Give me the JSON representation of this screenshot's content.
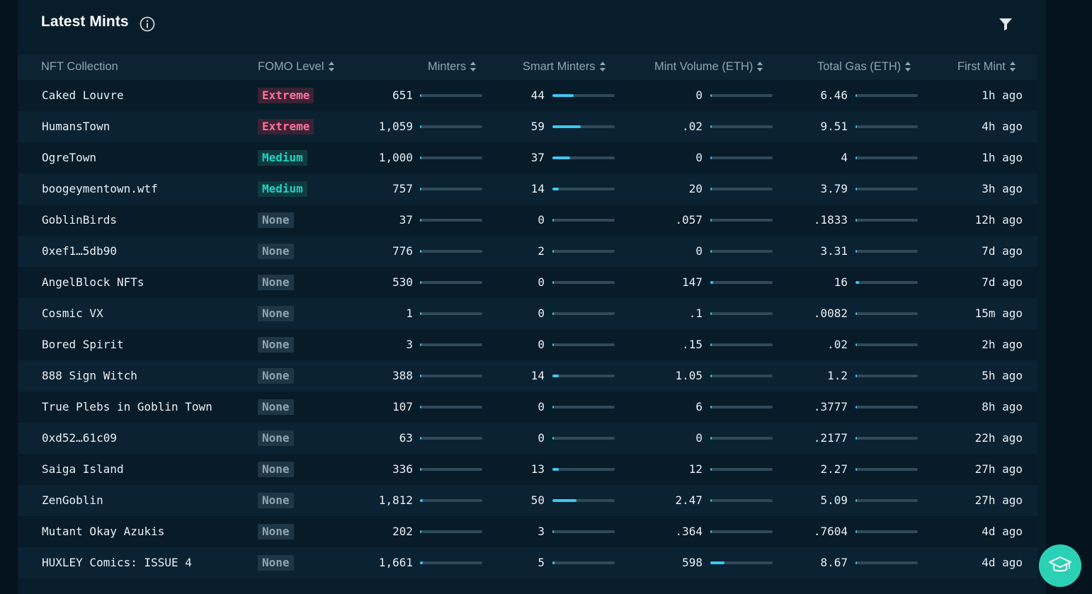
{
  "header": {
    "title": "Latest Mints"
  },
  "columns": {
    "collection": "NFT Collection",
    "fomo": "FOMO Level",
    "minters": "Minters",
    "smart": "Smart Minters",
    "volume": "Mint Volume (ETH)",
    "gas": "Total Gas (ETH)",
    "first": "First Mint"
  },
  "colors": {
    "extreme_text": "#ff6fa0",
    "extreme_bg": "#3a2333",
    "medium_text": "#22d3c3",
    "medium_bg": "#0f3a3e",
    "none_text": "#8ea5b3",
    "none_bg": "#1f3646"
  },
  "rows": [
    {
      "name": "Caked Louvre",
      "fomo": "Extreme",
      "minters": "651",
      "minters_frac": 0.01,
      "smart": "44",
      "smart_frac": 0.34,
      "volume": "0",
      "volume_frac": 0,
      "gas": "6.46",
      "gas_frac": 0.02,
      "first": "1h ago"
    },
    {
      "name": "HumansTown",
      "fomo": "Extreme",
      "minters": "1,059",
      "minters_frac": 0.02,
      "smart": "59",
      "smart_frac": 0.46,
      "volume": ".02",
      "volume_frac": 0,
      "gas": "9.51",
      "gas_frac": 0.02,
      "first": "4h ago"
    },
    {
      "name": "OgreTown",
      "fomo": "Medium",
      "minters": "1,000",
      "minters_frac": 0.02,
      "smart": "37",
      "smart_frac": 0.28,
      "volume": "0",
      "volume_frac": 0,
      "gas": "4",
      "gas_frac": 0.01,
      "first": "1h ago"
    },
    {
      "name": "boogeymentown.wtf",
      "fomo": "Medium",
      "minters": "757",
      "minters_frac": 0.01,
      "smart": "14",
      "smart_frac": 0.1,
      "volume": "20",
      "volume_frac": 0.01,
      "gas": "3.79",
      "gas_frac": 0.01,
      "first": "3h ago"
    },
    {
      "name": "GoblinBirds",
      "fomo": "None",
      "minters": "37",
      "minters_frac": 0.01,
      "smart": "0",
      "smart_frac": 0,
      "volume": ".057",
      "volume_frac": 0,
      "gas": ".1833",
      "gas_frac": 0,
      "first": "12h ago"
    },
    {
      "name": "0xef1…5db90",
      "fomo": "None",
      "minters": "776",
      "minters_frac": 0.01,
      "smart": "2",
      "smart_frac": 0.01,
      "volume": "0",
      "volume_frac": 0,
      "gas": "3.31",
      "gas_frac": 0.01,
      "first": "7d ago"
    },
    {
      "name": "AngelBlock NFTs",
      "fomo": "None",
      "minters": "530",
      "minters_frac": 0.01,
      "smart": "0",
      "smart_frac": 0,
      "volume": "147",
      "volume_frac": 0.05,
      "gas": "16",
      "gas_frac": 0.06,
      "first": "7d ago"
    },
    {
      "name": "Cosmic VX",
      "fomo": "None",
      "minters": "1",
      "minters_frac": 0,
      "smart": "0",
      "smart_frac": 0,
      "volume": ".1",
      "volume_frac": 0,
      "gas": ".0082",
      "gas_frac": 0,
      "first": "15m ago"
    },
    {
      "name": "Bored Spirit",
      "fomo": "None",
      "minters": "3",
      "minters_frac": 0,
      "smart": "0",
      "smart_frac": 0,
      "volume": ".15",
      "volume_frac": 0,
      "gas": ".02",
      "gas_frac": 0,
      "first": "2h ago"
    },
    {
      "name": "888 Sign Witch",
      "fomo": "None",
      "minters": "388",
      "minters_frac": 0.01,
      "smart": "14",
      "smart_frac": 0.1,
      "volume": "1.05",
      "volume_frac": 0,
      "gas": "1.2",
      "gas_frac": 0.01,
      "first": "5h ago"
    },
    {
      "name": "True Plebs in Goblin Town",
      "fomo": "None",
      "minters": "107",
      "minters_frac": 0.01,
      "smart": "0",
      "smart_frac": 0,
      "volume": "6",
      "volume_frac": 0,
      "gas": ".3777",
      "gas_frac": 0,
      "first": "8h ago"
    },
    {
      "name": "0xd52…61c09",
      "fomo": "None",
      "minters": "63",
      "minters_frac": 0.01,
      "smart": "0",
      "smart_frac": 0,
      "volume": "0",
      "volume_frac": 0,
      "gas": ".2177",
      "gas_frac": 0,
      "first": "22h ago"
    },
    {
      "name": "Saiga Island",
      "fomo": "None",
      "minters": "336",
      "minters_frac": 0.01,
      "smart": "13",
      "smart_frac": 0.1,
      "volume": "12",
      "volume_frac": 0,
      "gas": "2.27",
      "gas_frac": 0.01,
      "first": "27h ago"
    },
    {
      "name": "ZenGoblin",
      "fomo": "None",
      "minters": "1,812",
      "minters_frac": 0.04,
      "smart": "50",
      "smart_frac": 0.39,
      "volume": "2.47",
      "volume_frac": 0,
      "gas": "5.09",
      "gas_frac": 0.01,
      "first": "27h ago"
    },
    {
      "name": "Mutant Okay Azukis",
      "fomo": "None",
      "minters": "202",
      "minters_frac": 0.01,
      "smart": "3",
      "smart_frac": 0.02,
      "volume": ".364",
      "volume_frac": 0,
      "gas": ".7604",
      "gas_frac": 0,
      "first": "4d ago"
    },
    {
      "name": "HUXLEY Comics: ISSUE 4",
      "fomo": "None",
      "minters": "1,661",
      "minters_frac": 0.04,
      "smart": "5",
      "smart_frac": 0.03,
      "volume": "598",
      "volume_frac": 0.23,
      "gas": "8.67",
      "gas_frac": 0.01,
      "first": "4d ago"
    }
  ]
}
